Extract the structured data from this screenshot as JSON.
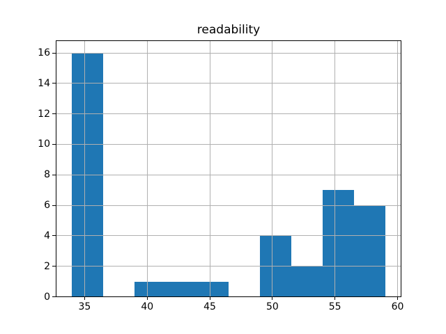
{
  "chart_data": {
    "type": "bar",
    "subtype": "histogram",
    "title": "readability",
    "xlabel": "",
    "ylabel": "",
    "bin_edges": [
      34.0,
      36.5,
      39.0,
      41.5,
      44.0,
      46.5,
      49.0,
      51.5,
      54.0,
      56.5,
      59.0
    ],
    "counts": [
      16,
      0,
      1,
      1,
      1,
      0,
      4,
      2,
      7,
      6
    ],
    "xlim": [
      32.75,
      60.25
    ],
    "ylim": [
      0,
      16.8
    ],
    "xticks": [
      35,
      40,
      45,
      50,
      55,
      60
    ],
    "yticks": [
      0,
      2,
      4,
      6,
      8,
      10,
      12,
      14,
      16
    ],
    "grid": true,
    "grid_over_bars": true,
    "legend_position": "none",
    "bar_color": "#1f77b4",
    "grid_color": "#b0b0b0",
    "spine_color": "#000000",
    "text_color": "#000000",
    "background_color": "#ffffff"
  }
}
